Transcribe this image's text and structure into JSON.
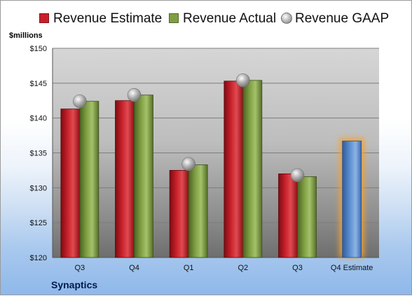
{
  "company": "Synaptics",
  "y_unit_label": "$millions",
  "colors": {
    "estimate": "#c8202a",
    "actual": "#7f9e42",
    "gaap": "#b8b8b8",
    "forecast": "#5d8fd1",
    "forecast_glow": "#f5a233"
  },
  "legend": [
    {
      "label": "Revenue Estimate",
      "color": "#c8202a",
      "icon": "square-swatch"
    },
    {
      "label": "Revenue Actual",
      "color": "#7f9e42",
      "icon": "square-swatch"
    },
    {
      "label": "Revenue GAAP",
      "color": "#b8b8b8",
      "icon": "sphere-marker"
    }
  ],
  "chart_data": {
    "type": "bar",
    "categories": [
      "Q3",
      "Q4",
      "Q1",
      "Q2",
      "Q3",
      "Q4 Estimate"
    ],
    "series": [
      {
        "name": "Revenue Estimate",
        "values": [
          141.3,
          142.5,
          132.5,
          145.3,
          132.0,
          136.7
        ]
      },
      {
        "name": "Revenue Actual",
        "values": [
          142.4,
          143.3,
          133.3,
          145.4,
          131.6,
          null
        ]
      },
      {
        "name": "Revenue GAAP",
        "values": [
          142.4,
          143.3,
          133.4,
          145.4,
          131.8,
          null
        ],
        "marker": "circle"
      }
    ],
    "ylim": [
      120,
      150
    ],
    "yticks": [
      120,
      125,
      130,
      135,
      140,
      145,
      150
    ],
    "ytick_labels": [
      "$120",
      "$125",
      "$130",
      "$135",
      "$140",
      "$145",
      "$150"
    ],
    "ylabel": "$millions",
    "grid": true,
    "legend_position": "top",
    "highlighted_category": "Q4 Estimate"
  }
}
